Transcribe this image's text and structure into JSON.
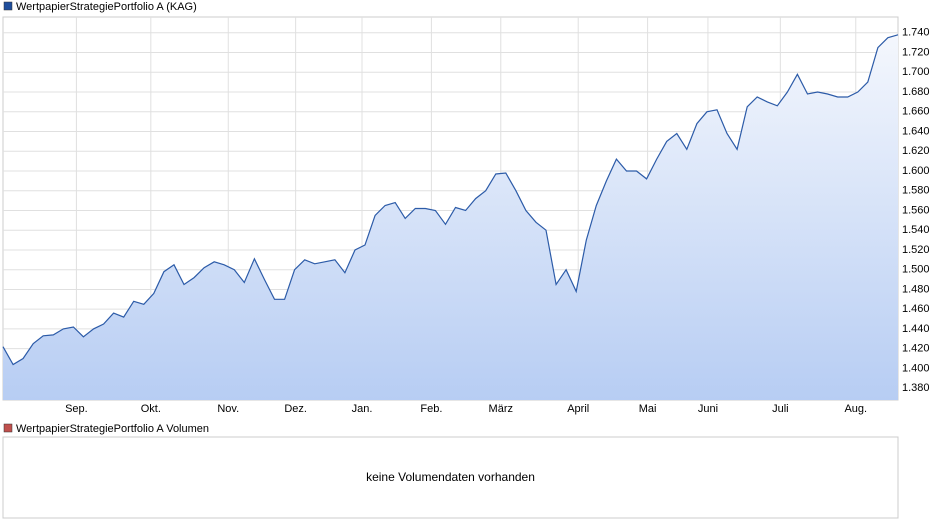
{
  "chart_data": [
    {
      "type": "line",
      "legend": "WertpapierStrategiePortfolio A (KAG)",
      "color": "#2c5ba8",
      "legend_color": "#1f4e9c",
      "xlim": [
        0,
        89
      ],
      "xticks": [
        {
          "value": 7.3,
          "label": "Sep."
        },
        {
          "value": 14.7,
          "label": "Okt."
        },
        {
          "value": 22.4,
          "label": "Nov."
        },
        {
          "value": 29.1,
          "label": "Dez."
        },
        {
          "value": 35.7,
          "label": "Jan."
        },
        {
          "value": 42.6,
          "label": "Feb."
        },
        {
          "value": 49.5,
          "label": "März"
        },
        {
          "value": 57.2,
          "label": "April"
        },
        {
          "value": 64.1,
          "label": "Mai"
        },
        {
          "value": 70.1,
          "label": "Juni"
        },
        {
          "value": 77.3,
          "label": "Juli"
        },
        {
          "value": 84.8,
          "label": "Aug."
        }
      ],
      "ylim": [
        1.368,
        1.756
      ],
      "yticks": [
        {
          "value": 1.38,
          "label": "1.380"
        },
        {
          "value": 1.4,
          "label": "1.400"
        },
        {
          "value": 1.42,
          "label": "1.420"
        },
        {
          "value": 1.44,
          "label": "1.440"
        },
        {
          "value": 1.46,
          "label": "1.460"
        },
        {
          "value": 1.48,
          "label": "1.480"
        },
        {
          "value": 1.5,
          "label": "1.500"
        },
        {
          "value": 1.52,
          "label": "1.520"
        },
        {
          "value": 1.54,
          "label": "1.540"
        },
        {
          "value": 1.56,
          "label": "1.560"
        },
        {
          "value": 1.58,
          "label": "1.580"
        },
        {
          "value": 1.6,
          "label": "1.600"
        },
        {
          "value": 1.62,
          "label": "1.620"
        },
        {
          "value": 1.64,
          "label": "1.640"
        },
        {
          "value": 1.66,
          "label": "1.660"
        },
        {
          "value": 1.68,
          "label": "1.680"
        },
        {
          "value": 1.7,
          "label": "1.700"
        },
        {
          "value": 1.72,
          "label": "1.720"
        },
        {
          "value": 1.74,
          "label": "1.740"
        }
      ],
      "grid": true,
      "values": [
        1.422,
        1.404,
        1.41,
        1.425,
        1.433,
        1.434,
        1.44,
        1.442,
        1.432,
        1.44,
        1.445,
        1.456,
        1.452,
        1.468,
        1.465,
        1.476,
        1.498,
        1.505,
        1.485,
        1.492,
        1.502,
        1.508,
        1.505,
        1.5,
        1.487,
        1.511,
        1.49,
        1.47,
        1.47,
        1.5,
        1.51,
        1.506,
        1.508,
        1.51,
        1.497,
        1.52,
        1.525,
        1.555,
        1.565,
        1.568,
        1.552,
        1.562,
        1.562,
        1.56,
        1.546,
        1.563,
        1.56,
        1.572,
        1.58,
        1.597,
        1.598,
        1.58,
        1.56,
        1.548,
        1.54,
        1.485,
        1.5,
        1.478,
        1.53,
        1.565,
        1.59,
        1.612,
        1.6,
        1.6,
        1.592,
        1.612,
        1.63,
        1.638,
        1.622,
        1.648,
        1.66,
        1.662,
        1.638,
        1.622,
        1.665,
        1.675,
        1.67,
        1.666,
        1.68,
        1.698,
        1.678,
        1.68,
        1.678,
        1.675,
        1.675,
        1.68,
        1.69,
        1.725,
        1.735,
        1.738
      ]
    },
    {
      "type": "empty",
      "legend": "WertpapierStrategiePortfolio A Volumen",
      "legend_color": "#c0504d",
      "message": "keine Volumendaten vorhanden"
    }
  ]
}
